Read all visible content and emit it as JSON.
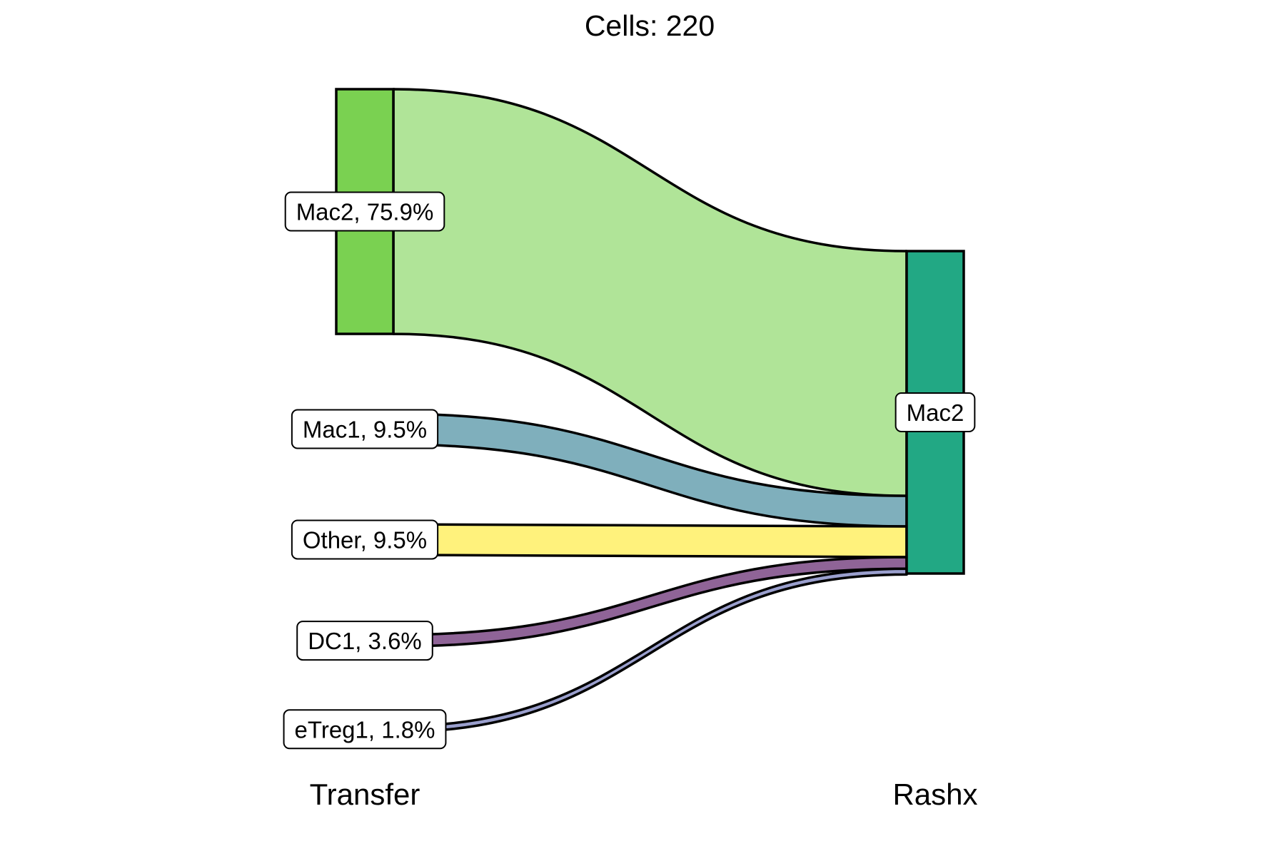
{
  "chart_data": {
    "type": "sankey",
    "title": "Cells:  220",
    "total_cells": 220,
    "axes": [
      "Transfer",
      "Rashx"
    ],
    "source_nodes": [
      {
        "name": "Mac2",
        "label": "Mac2, 75.9%",
        "percent": 75.9,
        "color": "#7ad151"
      },
      {
        "name": "Mac1",
        "label": "Mac1, 9.5%",
        "percent": 9.5,
        "color": "#7fafbc"
      },
      {
        "name": "Other",
        "label": "Other, 9.5%",
        "percent": 9.5,
        "color": "#fff27c"
      },
      {
        "name": "DC1",
        "label": "DC1, 3.6%",
        "percent": 3.6,
        "color": "#8f6497"
      },
      {
        "name": "eTreg1",
        "label": "eTreg1, 1.8%",
        "percent": 1.8,
        "color": "#9a9fcd"
      }
    ],
    "target_nodes": [
      {
        "name": "Mac2",
        "label": "Mac2",
        "percent": 100,
        "color": "#22a884"
      }
    ],
    "flows": [
      {
        "from": "Mac2",
        "to": "Mac2",
        "percent": 75.9,
        "color": "#b0e498"
      },
      {
        "from": "Mac1",
        "to": "Mac2",
        "percent": 9.5,
        "color": "#7fafbc"
      },
      {
        "from": "Other",
        "to": "Mac2",
        "percent": 9.5,
        "color": "#fff27c"
      },
      {
        "from": "DC1",
        "to": "Mac2",
        "percent": 3.6,
        "color": "#8f6497"
      },
      {
        "from": "eTreg1",
        "to": "Mac2",
        "percent": 1.8,
        "color": "#9a9fcd"
      }
    ]
  }
}
